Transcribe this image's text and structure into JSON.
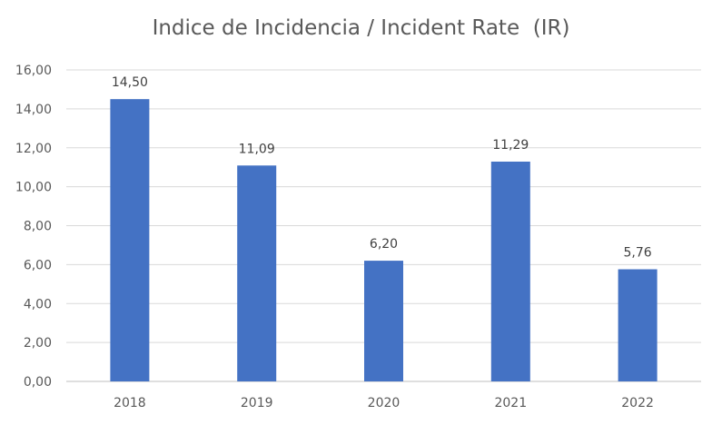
{
  "chart_data": {
    "type": "bar",
    "title": "Indice de Incidencia / Incident Rate  (IR)",
    "xlabel": "",
    "ylabel": "",
    "categories": [
      "2018",
      "2019",
      "2020",
      "2021",
      "2022"
    ],
    "values": [
      14.5,
      11.09,
      6.2,
      11.29,
      5.76
    ],
    "data_labels": [
      "14,50",
      "11,09",
      "6,20",
      "11,29",
      "5,76"
    ],
    "ylim": [
      0,
      16
    ],
    "yticks": [
      0,
      2,
      4,
      6,
      8,
      10,
      12,
      14,
      16
    ],
    "ytick_labels": [
      "0,00",
      "2,00",
      "4,00",
      "6,00",
      "8,00",
      "10,00",
      "12,00",
      "14,00",
      "16,00"
    ],
    "grid": true,
    "legend": "none",
    "colors": {
      "bar": "#4472C4",
      "grid": "#D9D9D9",
      "text": "#595959"
    }
  }
}
